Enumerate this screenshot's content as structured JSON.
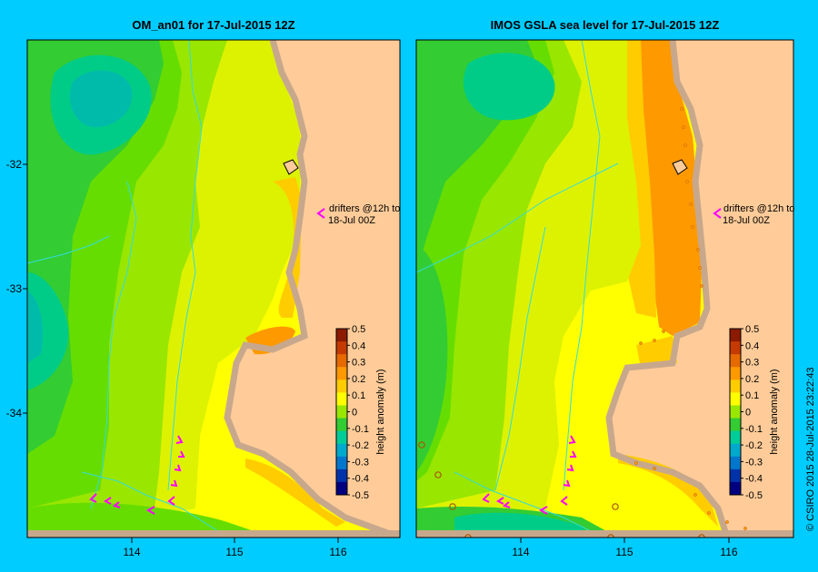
{
  "panels": [
    {
      "title": "OM_an01  for 17-Jul-2015 12Z"
    },
    {
      "title": "IMOS GSLA sea level  for 17-Jul-2015 12Z"
    }
  ],
  "axes": {
    "y_ticks": [
      "-32",
      "-33",
      "-34"
    ],
    "x_ticks": [
      "114",
      "115",
      "116"
    ]
  },
  "colorbar": {
    "label": "height anomaly (m)",
    "ticks": [
      "0.5",
      "0.4",
      "0.3",
      "0.2",
      "0.1",
      "0",
      "-0.1",
      "-0.2",
      "-0.3",
      "-0.4",
      "-0.5"
    ],
    "colors": [
      "#8b1a00",
      "#c43a00",
      "#e66a00",
      "#ff9900",
      "#ffcc00",
      "#ffff00",
      "#99e600",
      "#33cc33",
      "#00cc99",
      "#00aacc",
      "#0077cc",
      "#0033aa",
      "#000080"
    ]
  },
  "annotation": {
    "line1": "drifters @12h to",
    "line2": "18-Jul 00Z"
  },
  "credit": "© CSIRO 2015   28-Jul-2015 23:22:43",
  "colors": {
    "background": "#00ccff",
    "land": "#ffcc99",
    "coast": "#c8a88c",
    "drifter": "#ff00ff"
  }
}
